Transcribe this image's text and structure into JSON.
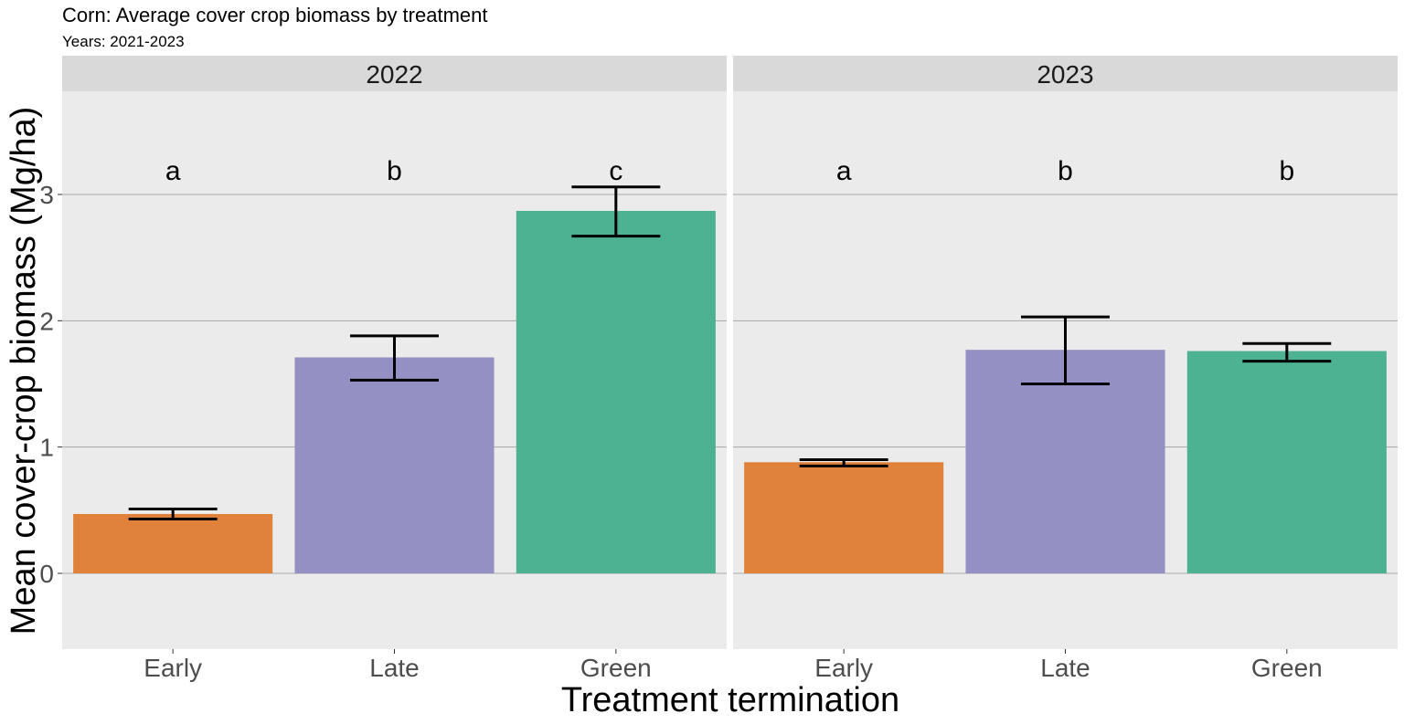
{
  "chart_data": {
    "type": "bar",
    "title": "Corn: Average cover crop biomass by treatment",
    "subtitle": "Years: 2021-2023",
    "xlabel": "Treatment termination",
    "ylabel": "Mean cover-crop biomass (Mg/ha)",
    "ylim": [
      -0.6,
      3.8
    ],
    "yticks": [
      "0",
      "1",
      "2",
      "3"
    ],
    "grid": true,
    "legend": "none",
    "categories": [
      "Early",
      "Late",
      "Green"
    ],
    "colors": {
      "Early": "#e0823c",
      "Late": "#9590c3",
      "Green": "#4db292"
    },
    "panels": [
      {
        "name": "2022",
        "values": [
          0.47,
          1.71,
          2.87
        ],
        "error_low": [
          0.43,
          1.53,
          2.67
        ],
        "error_high": [
          0.51,
          1.88,
          3.06
        ],
        "letters": [
          "a",
          "b",
          "c"
        ]
      },
      {
        "name": "2023",
        "values": [
          0.88,
          1.77,
          1.76
        ],
        "error_low": [
          0.85,
          1.5,
          1.68
        ],
        "error_high": [
          0.9,
          2.03,
          1.82
        ],
        "letters": [
          "a",
          "b",
          "b"
        ]
      }
    ]
  }
}
